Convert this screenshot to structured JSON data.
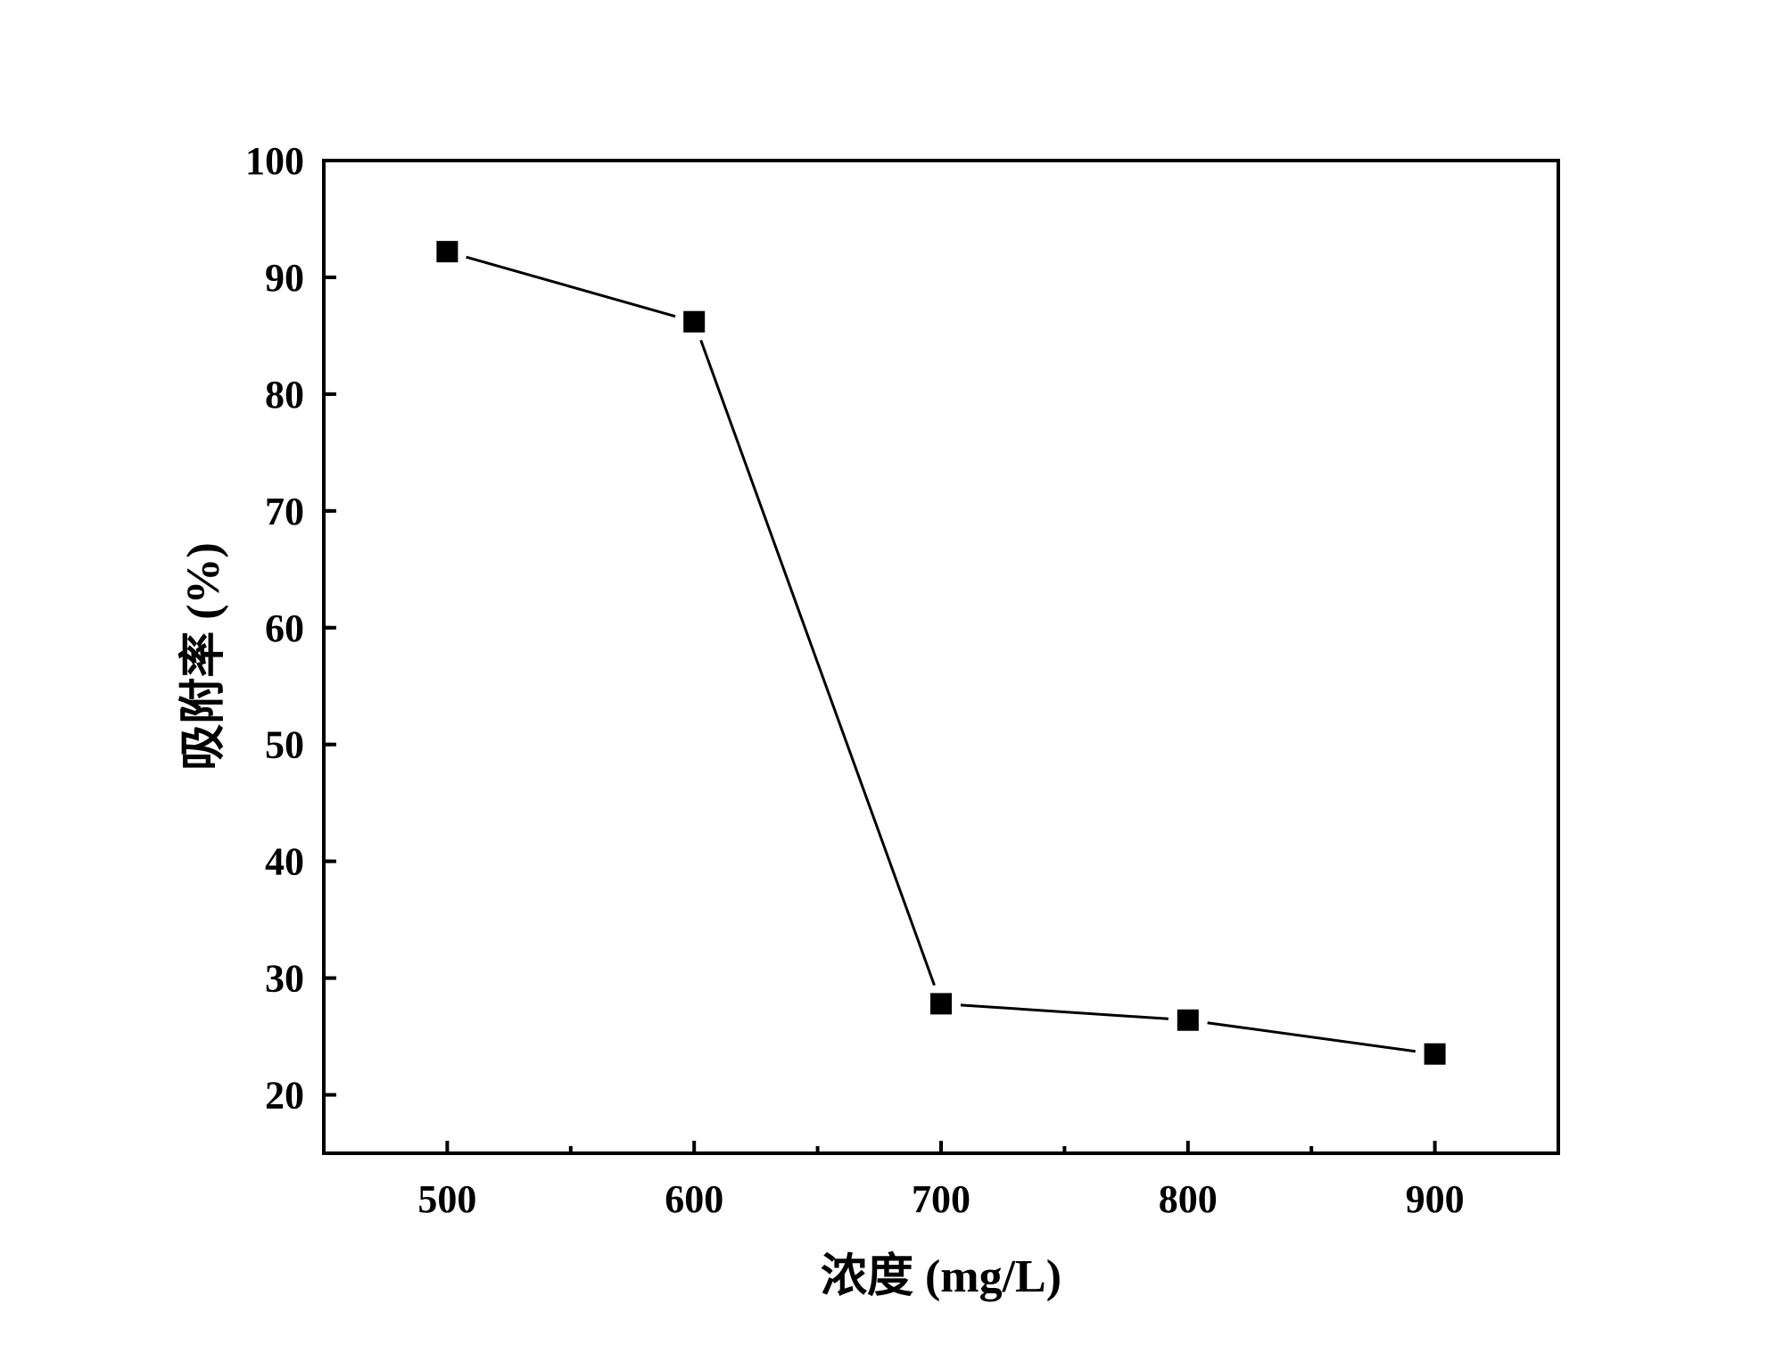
{
  "chart_data": {
    "type": "line",
    "title": "",
    "xlabel": "浓度 (mg/L)",
    "ylabel": "吸附率 (%)",
    "x": [
      500,
      600,
      700,
      800,
      900
    ],
    "series": [
      {
        "values": [
          92.2,
          86.2,
          27.8,
          26.4,
          23.5
        ]
      }
    ],
    "xlim": [
      450,
      950
    ],
    "ylim": [
      15,
      100
    ],
    "x_ticks": [
      500,
      600,
      700,
      800,
      900
    ],
    "y_ticks": [
      20,
      30,
      40,
      50,
      60,
      70,
      80,
      90,
      100
    ],
    "x_tick_labels": [
      "500",
      "600",
      "700",
      "800",
      "900"
    ],
    "y_tick_labels": [
      "20",
      "30",
      "40",
      "50",
      "60",
      "70",
      "80",
      "90",
      "100"
    ],
    "marker": "square",
    "series_color": "#000000",
    "grid": false,
    "legend": "none"
  }
}
